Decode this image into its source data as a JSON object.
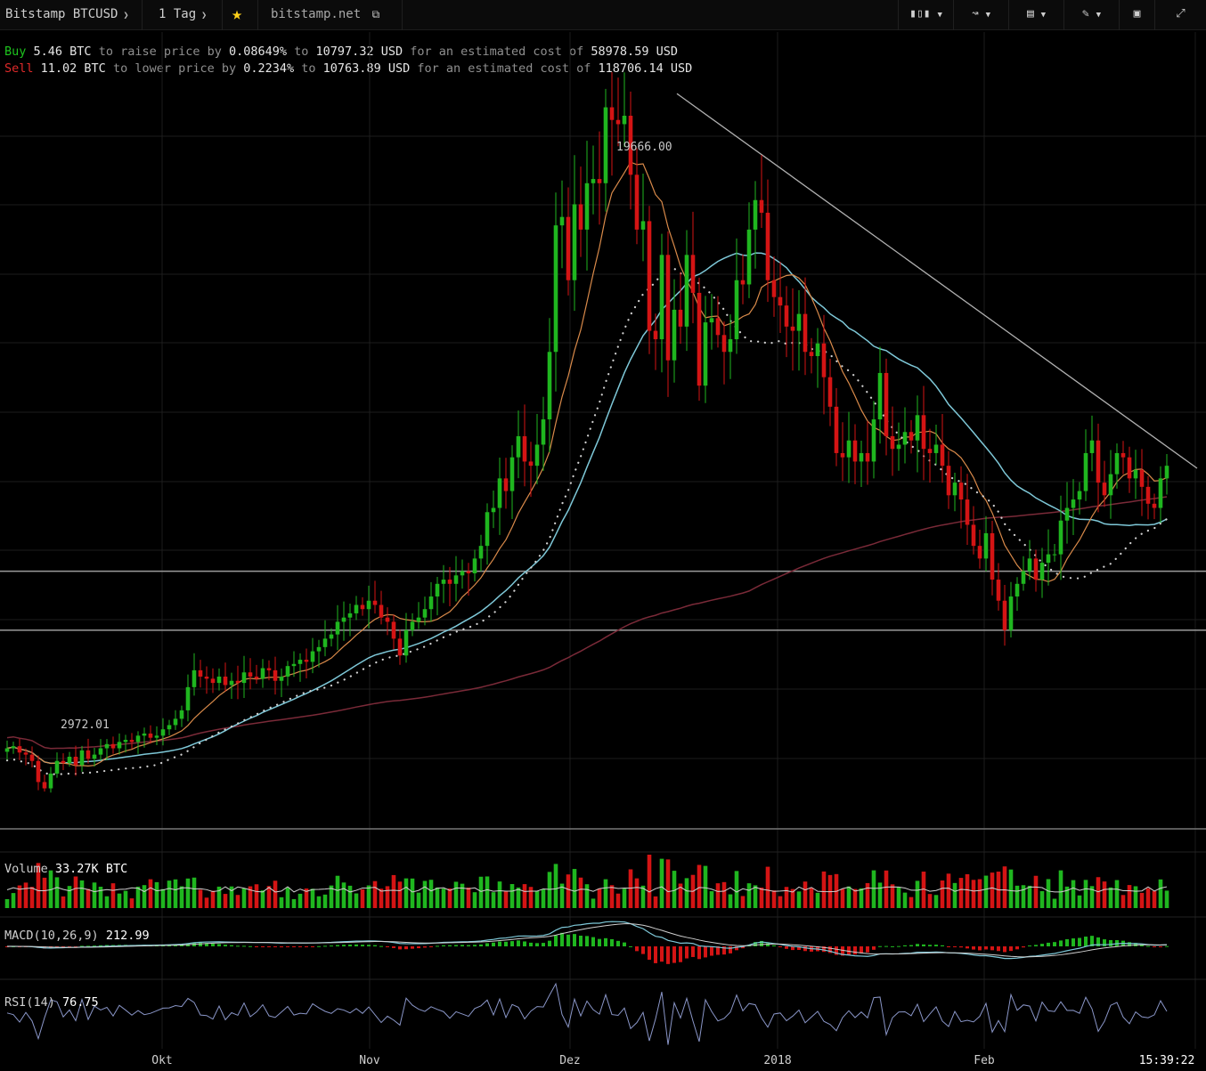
{
  "toolbar": {
    "symbol": "Bitstamp BTCUSD",
    "interval": "1 Tag",
    "source": "bitstamp.net",
    "icons": [
      "candles-icon",
      "compare-icon",
      "indicators-icon",
      "draw-icon",
      "chart-icon",
      "fullscreen-icon"
    ]
  },
  "trade": {
    "buy_word": "Buy",
    "buy_qty": "5.46 BTC",
    "buy_mid1": " to raise price by ",
    "buy_pct": "0.08649%",
    "buy_mid2": " to ",
    "buy_price": "10797.32 USD",
    "buy_mid3": " for an estimated cost of ",
    "buy_cost": "58978.59 USD",
    "sell_word": "Sell",
    "sell_qty": "11.02 BTC",
    "sell_mid1": " to lower price by ",
    "sell_pct": "0.2234%",
    "sell_mid2": " to ",
    "sell_price": "10763.89 USD",
    "sell_mid3": " for an estimated cost of ",
    "sell_cost": "118706.14 USD"
  },
  "colors": {
    "up": "#1fb61f",
    "down": "#d41414",
    "ma_orange": "#d98a4a",
    "ma_blue": "#7ec8d8",
    "ma_dark": "#7a2a38",
    "dots": "#d0d0d0",
    "trend": "#b0b0b0"
  },
  "panels": {
    "volume_label": "Volume",
    "volume_value": "33.27K BTC",
    "macd_label": "MACD(10,26,9)",
    "macd_value": "212.99",
    "rsi_label": "RSI(14)",
    "rsi_value": "76.75"
  },
  "chart_data": {
    "type": "candlestick",
    "symbol": "BTCUSD",
    "x_ticks": [
      "Okt",
      "Nov",
      "Dez",
      "2018",
      "Feb"
    ],
    "time_label": "15:39:22",
    "annotations": {
      "high": "19666.00",
      "low": "2972.01"
    },
    "ylim": [
      2000,
      21000
    ],
    "support_levels": [
      8300,
      6900
    ],
    "approx_closes": [
      4100,
      4150,
      4000,
      3950,
      3800,
      3300,
      3150,
      3500,
      3800,
      3750,
      3900,
      3700,
      4050,
      3850,
      3950,
      4100,
      4200,
      4100,
      4250,
      4300,
      4250,
      4400,
      4450,
      4350,
      4400,
      4550,
      4650,
      4800,
      5000,
      5550,
      5950,
      5800,
      5750,
      5650,
      5800,
      5600,
      5700,
      5650,
      5900,
      5800,
      5750,
      6000,
      5950,
      5700,
      5800,
      6050,
      6100,
      6200,
      6150,
      6400,
      6500,
      6700,
      6800,
      7100,
      7200,
      7300,
      7500,
      7400,
      7600,
      7500,
      7200,
      7100,
      6700,
      6300,
      6900,
      7100,
      7200,
      7400,
      7700,
      8000,
      8100,
      8000,
      8200,
      8300,
      8250,
      8600,
      8900,
      9700,
      9800,
      10500,
      10200,
      11000,
      11500,
      10900,
      10800,
      11300,
      11900,
      13500,
      16500,
      16700,
      15200,
      17000,
      16400,
      17500,
      17600,
      17500,
      19300,
      19000,
      18900,
      19100,
      17700,
      16400,
      16600,
      14000,
      13800,
      15800,
      13300,
      14500,
      14100,
      15800,
      14900,
      12700,
      14200,
      14300,
      13900,
      13500,
      13800,
      15200,
      15100,
      16400,
      17100,
      16800,
      15200,
      14800,
      14600,
      14100,
      14000,
      14400,
      13500,
      13400,
      13700,
      12900,
      12200,
      11100,
      11000,
      11400,
      10900,
      11100,
      10900,
      11900,
      13000,
      11500,
      11200,
      11300,
      11600,
      11400,
      12000,
      11200,
      11100,
      11300,
      10800,
      10100,
      10400,
      10000,
      9400,
      8900,
      8600,
      9200,
      8100,
      7600,
      6900,
      7700,
      8000,
      8300,
      8600,
      8100,
      8500,
      8700,
      8700,
      9500,
      9800,
      10000,
      10200,
      11100,
      11400,
      10400,
      10100,
      10600,
      11100,
      11000,
      10500,
      10700,
      10300,
      9900,
      9800,
      10500,
      10800
    ]
  }
}
